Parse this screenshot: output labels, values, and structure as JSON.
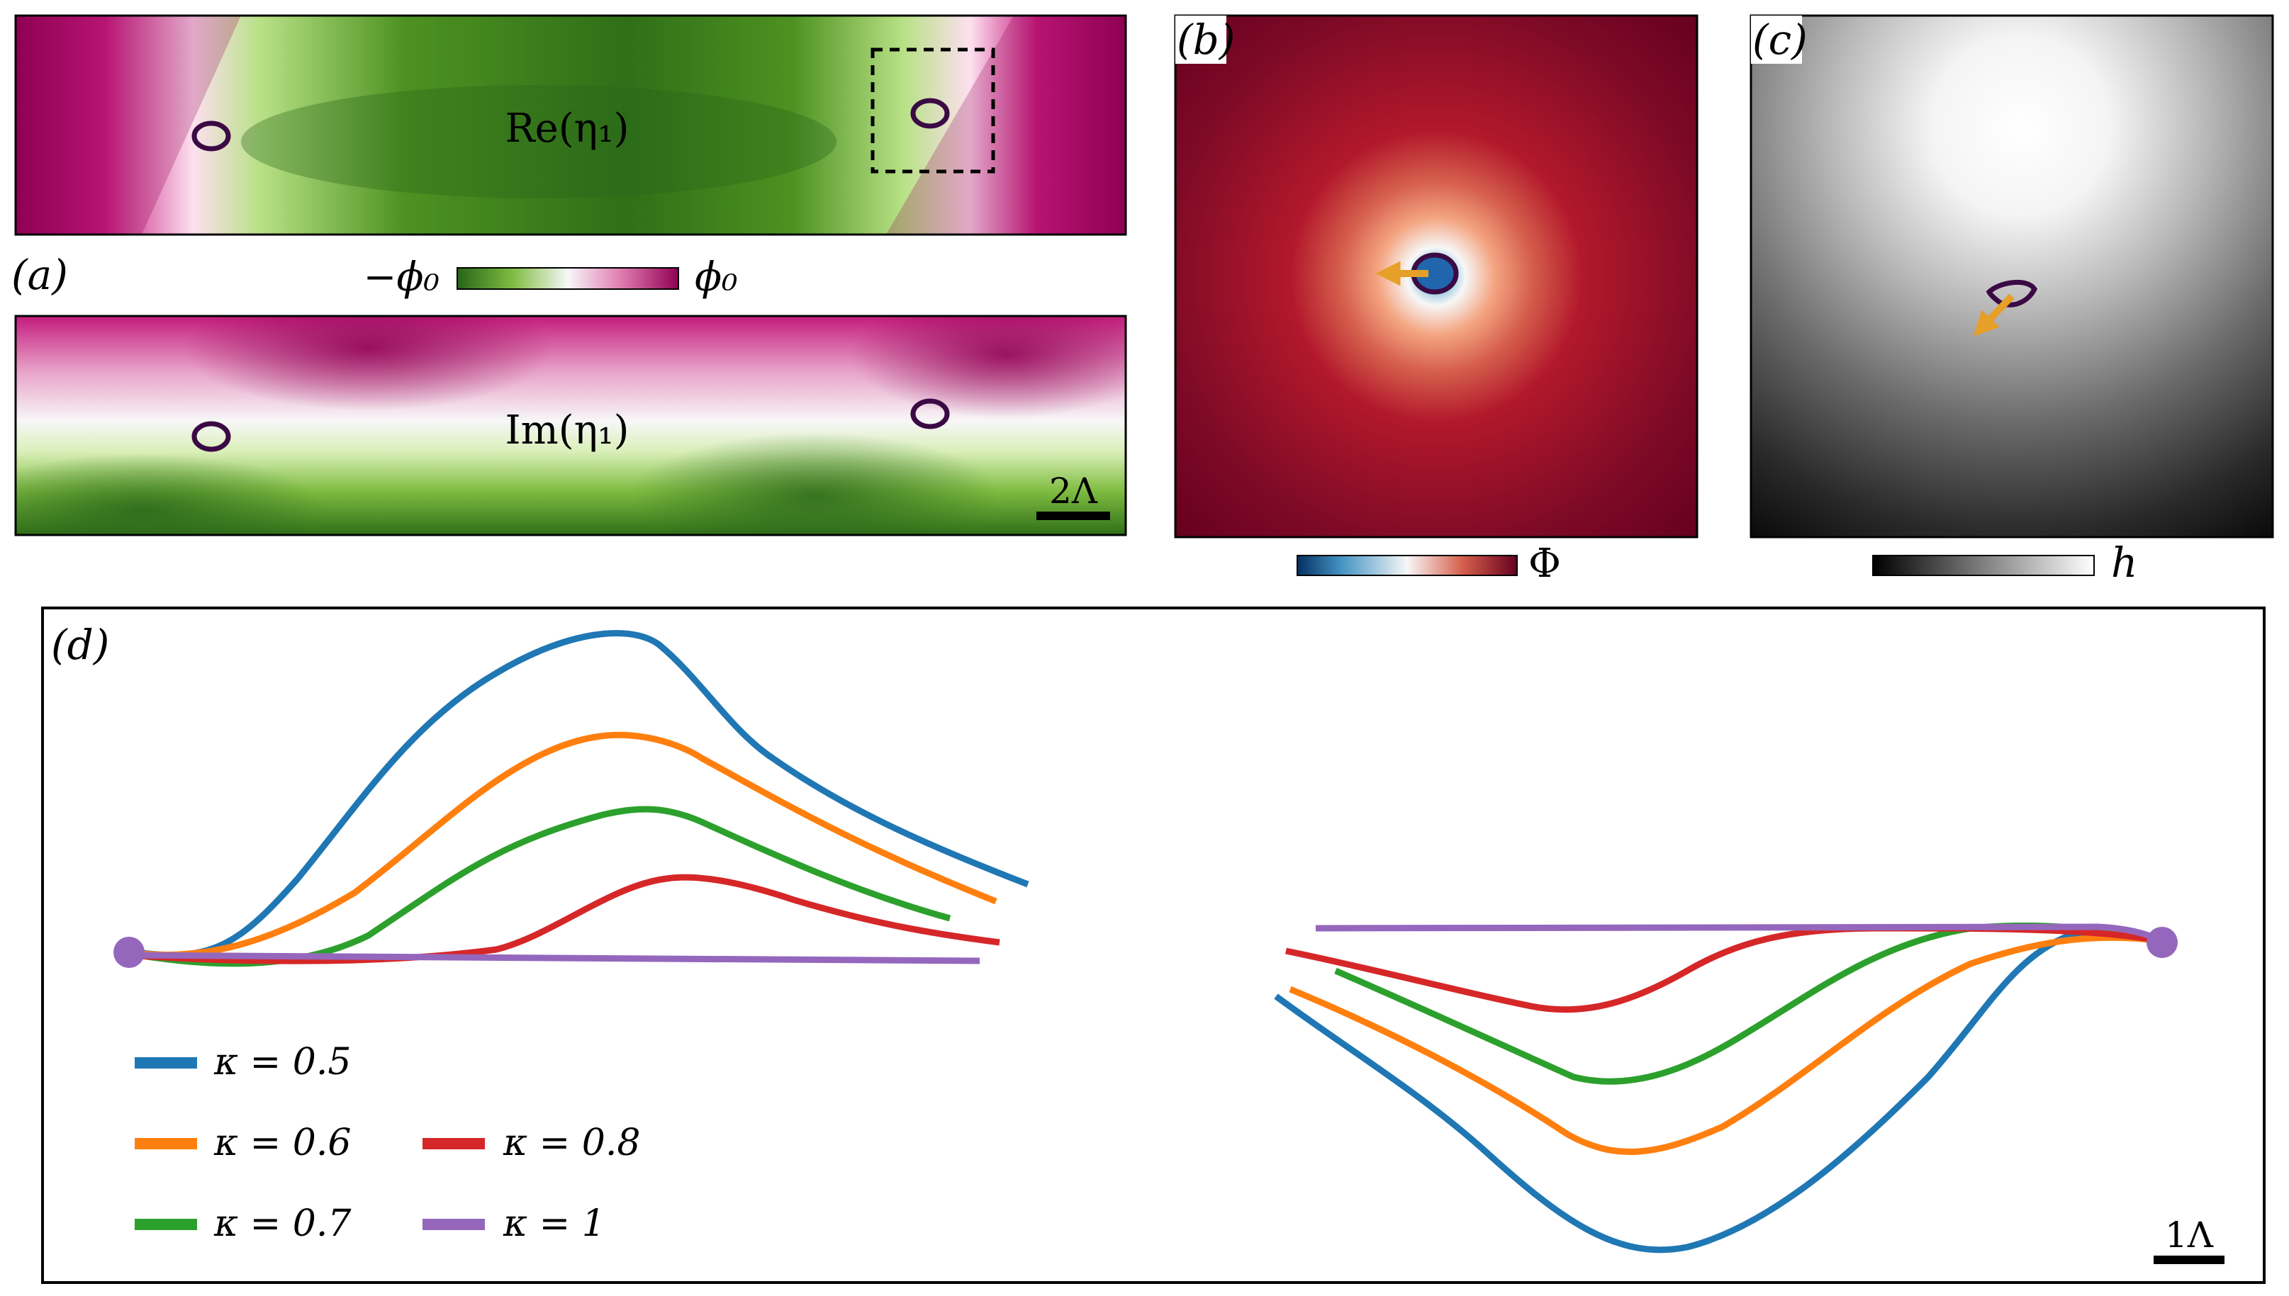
{
  "panel_a": {
    "label": "(a)",
    "top_map_label": "Re(η₁)",
    "bottom_map_label": "Im(η₁)",
    "colorbar_min": "−ϕ₀",
    "colorbar_max": "ϕ₀",
    "scale_bar": "2Λ",
    "colors": {
      "low": "#276419",
      "mid": "#f7f7f7",
      "high": "#8e0152"
    }
  },
  "panel_b": {
    "label": "(b)",
    "colorbar_label": "Φ",
    "colors": {
      "low": "#053061",
      "mid": "#f7f7f7",
      "high": "#67001f",
      "arrow": "#e69f27"
    }
  },
  "panel_c": {
    "label": "(c)",
    "colorbar_label": "h",
    "colors": {
      "low": "#000000",
      "high": "#ffffff",
      "arrow": "#e69f27"
    }
  },
  "panel_d": {
    "label": "(d)",
    "scale_bar": "1Λ",
    "legend": [
      {
        "text": "κ = 0.5",
        "color": "#1f77b4"
      },
      {
        "text": "κ = 0.6",
        "color": "#ff7f0e"
      },
      {
        "text": "κ = 0.7",
        "color": "#2ca02c"
      },
      {
        "text": "κ = 0.8",
        "color": "#d62728"
      },
      {
        "text": "κ = 1",
        "color": "#9467bd"
      }
    ]
  },
  "defect_ring_color": "#3b0a45"
}
